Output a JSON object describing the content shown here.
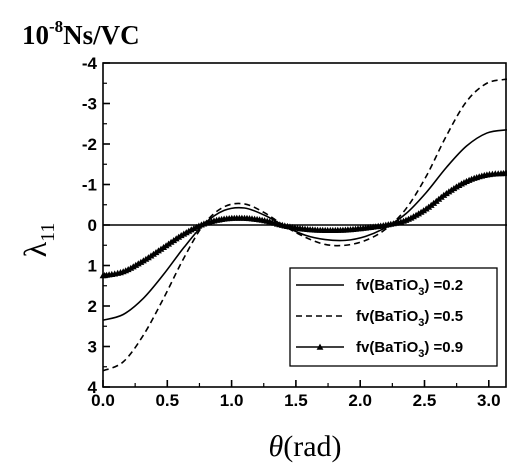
{
  "chart_data": {
    "type": "line",
    "unit_label_base": "10",
    "unit_label_exp": "-8",
    "unit_label_rest": "Ns/VC",
    "ylabel_main": "λ",
    "ylabel_sub": "11",
    "xlabel_main": "θ",
    "xlabel_unit": "(rad)",
    "xlim": [
      0,
      3.14159
    ],
    "ylim": [
      4,
      -4
    ],
    "y_inverted": true,
    "xticks": [
      0.0,
      0.5,
      1.0,
      1.5,
      2.0,
      2.5,
      3.0
    ],
    "xtick_labels": [
      "0.0",
      "0.5",
      "1.0",
      "1.5",
      "2.0",
      "2.5",
      "3.0"
    ],
    "yticks": [
      -4,
      -3,
      -2,
      -1,
      0,
      1,
      2,
      3,
      4
    ],
    "ytick_labels": [
      "-4",
      "-3",
      "-2",
      "-1",
      "0",
      "1",
      "2",
      "3",
      "4"
    ],
    "zero_line": true,
    "grid": false,
    "legend_position": "lower-right",
    "legend_text_prefix": "fv(BaTiO",
    "legend_text_sub": "3",
    "series": [
      {
        "name": "fv(BaTiO3) =0.2",
        "value_label": ") =0.2",
        "style": "solid",
        "x": [
          0.0,
          0.157,
          0.314,
          0.471,
          0.628,
          0.785,
          0.942,
          1.1,
          1.257,
          1.414,
          1.571,
          1.728,
          1.885,
          2.042,
          2.199,
          2.356,
          2.513,
          2.67,
          2.827,
          2.985,
          3.142
        ],
        "y": [
          2.35,
          2.21,
          1.81,
          1.22,
          0.56,
          -0.02,
          -0.36,
          -0.42,
          -0.24,
          0.03,
          0.25,
          0.36,
          0.38,
          0.28,
          0.06,
          -0.28,
          -0.8,
          -1.42,
          -1.95,
          -2.27,
          -2.35
        ]
      },
      {
        "name": "fv(BaTiO3) =0.5",
        "value_label": ") =0.5",
        "style": "dashed",
        "x": [
          0.0,
          0.157,
          0.314,
          0.471,
          0.628,
          0.785,
          0.942,
          1.1,
          1.257,
          1.414,
          1.571,
          1.728,
          1.885,
          2.042,
          2.199,
          2.356,
          2.513,
          2.67,
          2.827,
          2.985,
          3.142
        ],
        "y": [
          3.6,
          3.38,
          2.72,
          1.81,
          0.82,
          -0.02,
          -0.45,
          -0.52,
          -0.3,
          0.03,
          0.3,
          0.48,
          0.5,
          0.38,
          0.1,
          -0.4,
          -1.2,
          -2.2,
          -3.05,
          -3.5,
          -3.6
        ]
      },
      {
        "name": "fv(BaTiO3) =0.9",
        "value_label": ") =0.9",
        "style": "solid-triangles",
        "x": [
          0.0,
          0.157,
          0.314,
          0.471,
          0.628,
          0.785,
          0.942,
          1.1,
          1.257,
          1.414,
          1.571,
          1.728,
          1.885,
          2.042,
          2.199,
          2.356,
          2.513,
          2.67,
          2.827,
          2.985,
          3.142
        ],
        "y": [
          1.25,
          1.15,
          0.88,
          0.55,
          0.22,
          -0.03,
          -0.15,
          -0.17,
          -0.11,
          0.02,
          0.1,
          0.13,
          0.12,
          0.07,
          0.0,
          -0.12,
          -0.4,
          -0.78,
          -1.08,
          -1.24,
          -1.28
        ]
      }
    ]
  }
}
